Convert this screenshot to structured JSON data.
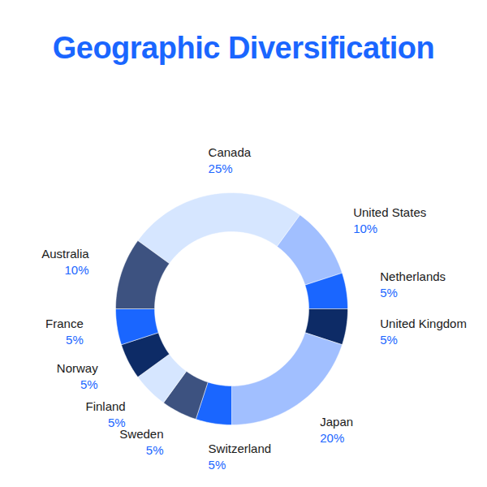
{
  "chart_data": {
    "type": "donut",
    "title": "Geographic Diversification",
    "categories": [
      "Canada",
      "United States",
      "Netherlands",
      "United Kingdom",
      "Japan",
      "Switzerland",
      "Sweden",
      "Finland",
      "Norway",
      "France",
      "Australia"
    ],
    "values": [
      25,
      10,
      5,
      5,
      20,
      5,
      5,
      5,
      5,
      5,
      10
    ],
    "value_labels": [
      "25%",
      "10%",
      "5%",
      "5%",
      "20%",
      "5%",
      "5%",
      "5%",
      "5%",
      "5%",
      "10%"
    ],
    "colors": [
      "#d6e6ff",
      "#a1bfff",
      "#1a66ff",
      "#0d2b66",
      "#a1bfff",
      "#1a66ff",
      "#3d5280",
      "#d6e6ff",
      "#0d2b66",
      "#1a66ff",
      "#3d5280"
    ],
    "data_labels": true
  }
}
